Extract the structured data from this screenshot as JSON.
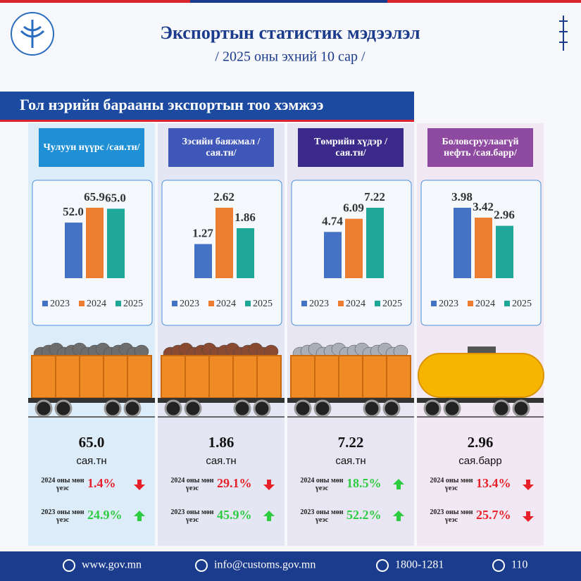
{
  "header": {
    "title": "Экспортын статистик мэдээлэл",
    "subtitle": "/ 2025 оны эхний 10 сар /"
  },
  "section_title": "Гол нэрийн барааны экспортын тоо хэмжээ",
  "chart_data": [
    {
      "type": "bar",
      "title": "Чулуун нүүрс /сая.тн/",
      "categories": [
        "2023",
        "2024",
        "2025"
      ],
      "values": [
        52.0,
        65.9,
        65.0
      ],
      "value_labels": [
        "52.0",
        "65.9",
        "65.0"
      ],
      "colors": [
        "#4472c4",
        "#ed7d31",
        "#1fa89a"
      ]
    },
    {
      "type": "bar",
      "title": "Зэсийн баяжмал /сая.тн/",
      "categories": [
        "2023",
        "2024",
        "2025"
      ],
      "values": [
        1.27,
        2.62,
        1.86
      ],
      "colors": [
        "#4472c4",
        "#ed7d31",
        "#1fa89a"
      ]
    },
    {
      "type": "bar",
      "title": "Төмрийн хүдэр /сая.тн/",
      "categories": [
        "2023",
        "2024",
        "2025"
      ],
      "values": [
        4.74,
        6.09,
        7.22
      ],
      "colors": [
        "#4472c4",
        "#ed7d31",
        "#1fa89a"
      ]
    },
    {
      "type": "bar",
      "title": "Боловсруулаагүй нефть /сая.барр/",
      "categories": [
        "2023",
        "2024",
        "2025"
      ],
      "values": [
        3.98,
        3.42,
        2.96
      ],
      "colors": [
        "#4472c4",
        "#ed7d31",
        "#1fa89a"
      ]
    }
  ],
  "panels": [
    {
      "value": "65.0",
      "unit": "сая.тн",
      "comparisons": [
        {
          "label": "2024 оны мөн үеэс",
          "change": "1.4%",
          "direction": "down"
        },
        {
          "label": "2023 оны мөн үеэс",
          "change": "24.9%",
          "direction": "up"
        }
      ]
    },
    {
      "value": "1.86",
      "unit": "сая.тн",
      "comparisons": [
        {
          "label": "2024 оны мөн үеэс",
          "change": "29.1%",
          "direction": "down"
        },
        {
          "label": "2023 оны мөн үеэс",
          "change": "45.9%",
          "direction": "up"
        }
      ]
    },
    {
      "value": "7.22",
      "unit": "сая.тн",
      "comparisons": [
        {
          "label": "2024 оны мөн үеэс",
          "change": "18.5%",
          "direction": "up"
        },
        {
          "label": "2023 оны мөн үеэс",
          "change": "52.2%",
          "direction": "up"
        }
      ]
    },
    {
      "value": "2.96",
      "unit": "сая.барр",
      "comparisons": [
        {
          "label": "2024 оны мөн үеэс",
          "change": "13.4%",
          "direction": "down"
        },
        {
          "label": "2023 оны мөн үеэс",
          "change": "25.7%",
          "direction": "down"
        }
      ]
    }
  ],
  "footer": {
    "website": "www.gov.mn",
    "email": "info@customs.gov.mn",
    "phone": "1800-1281",
    "hotline": "110"
  }
}
